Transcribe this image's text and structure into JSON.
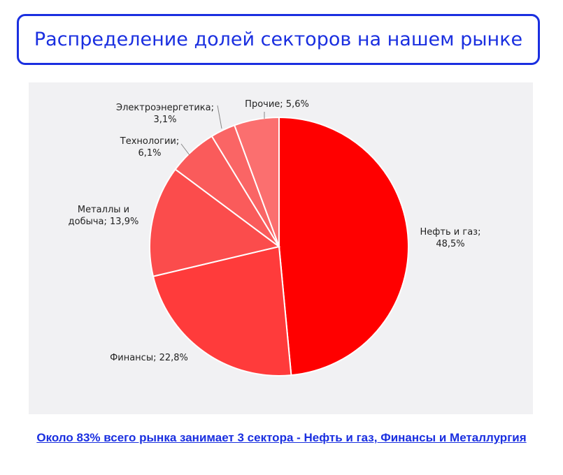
{
  "title": "Распределение долей секторов на нашем рынке",
  "footer_link": "Около 83% всего рынка занимает 3 сектора - Нефть и газ, Финансы и Металлургия",
  "chart_data": {
    "type": "pie",
    "title": "",
    "slices": [
      {
        "label_lines": [
          "Нефть и газ;",
          "48,5%"
        ],
        "name": "Нефть и газ",
        "value": 48.5,
        "color": "#ff0000"
      },
      {
        "label_lines": [
          "Финансы; 22,8%"
        ],
        "name": "Финансы",
        "value": 22.8,
        "color": "#ff3b3b"
      },
      {
        "label_lines": [
          "Металлы и",
          "добыча; 13,9%"
        ],
        "name": "Металлы и добыча",
        "value": 13.9,
        "color": "#fb4c4c"
      },
      {
        "label_lines": [
          "Технологии;",
          "6,1%"
        ],
        "name": "Технологии",
        "value": 6.1,
        "color": "#fa5b5b"
      },
      {
        "label_lines": [
          "Электроэнергетика;",
          "3,1%"
        ],
        "name": "Электроэнергетика",
        "value": 3.1,
        "color": "#fa6565"
      },
      {
        "label_lines": [
          "Прочие; 5,6%"
        ],
        "name": "Прочие",
        "value": 5.6,
        "color": "#fb6f6f"
      }
    ]
  }
}
